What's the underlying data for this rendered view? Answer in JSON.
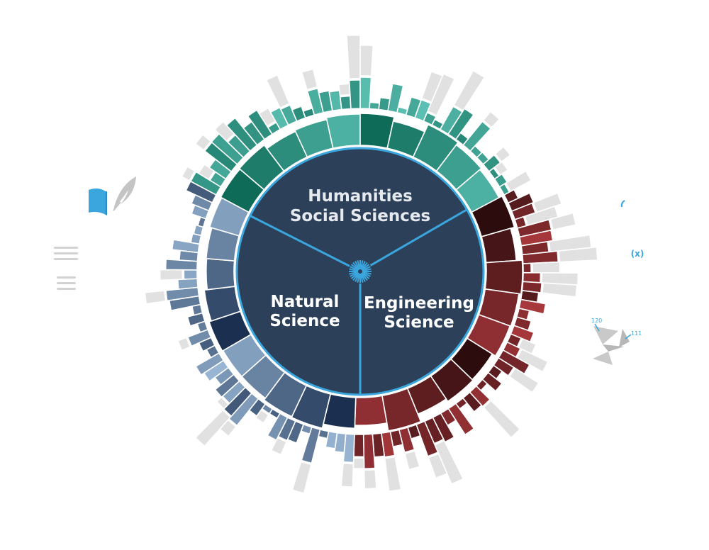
{
  "diagram": {
    "sectors": [
      {
        "id": "humanities",
        "lines": [
          "Humanities",
          "Social Sciences"
        ],
        "palette": [
          "#0d6b58",
          "#5cc1b4"
        ]
      },
      {
        "id": "engineering",
        "lines": [
          "Engineering",
          "Science"
        ],
        "palette": [
          "#2d0c0e",
          "#a8383c"
        ]
      },
      {
        "id": "natural",
        "lines": [
          "Natural",
          "Science"
        ],
        "palette": [
          "#1b2f50",
          "#9dbbd9"
        ]
      }
    ],
    "colors": {
      "core": "#2c4159",
      "accent": "#3aa6dd",
      "ring_gray": "#e1e1e1",
      "icon_gray": "#c4c4c4"
    },
    "icons": {
      "left": [
        "book-icon",
        "quill-icon",
        "text-lines-icon"
      ],
      "right": [
        "math-bracket-icon",
        "x-variable-icon",
        "molecule-icon"
      ]
    },
    "icon_labels": {
      "x_variable": "(x)",
      "molecule_a": "120",
      "molecule_b": "111"
    }
  }
}
